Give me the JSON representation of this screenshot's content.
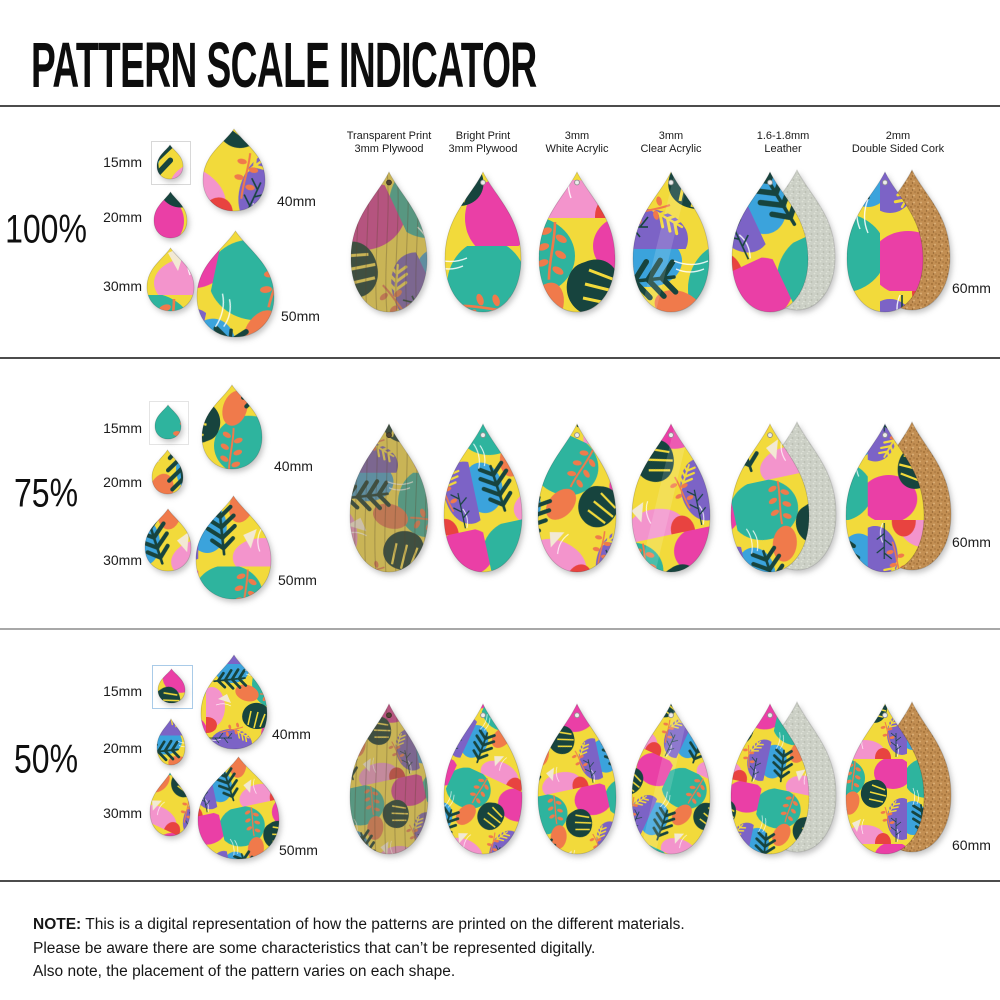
{
  "title": "PATTERN SCALE INDICATOR",
  "rows": [
    {
      "scale_label": "100%",
      "scale_percent": 100,
      "size_labels": [
        "15mm",
        "20mm",
        "30mm",
        "40mm",
        "50mm"
      ],
      "large_size_label": "60mm"
    },
    {
      "scale_label": "75%",
      "scale_percent": 75,
      "size_labels": [
        "15mm",
        "20mm",
        "30mm",
        "40mm",
        "50mm"
      ],
      "large_size_label": "60mm"
    },
    {
      "scale_label": "50%",
      "scale_percent": 50,
      "size_labels": [
        "15mm",
        "20mm",
        "30mm",
        "40mm",
        "50mm"
      ],
      "large_size_label": "60mm"
    }
  ],
  "materials": [
    {
      "line1": "Transparent Print",
      "line2": "3mm Plywood",
      "type": "transparent-plywood"
    },
    {
      "line1": "Bright Print",
      "line2": "3mm Plywood",
      "type": "bright-plywood"
    },
    {
      "line1": "3mm",
      "line2": "White Acrylic",
      "type": "white-acrylic"
    },
    {
      "line1": "3mm",
      "line2": "Clear Acrylic",
      "type": "clear-acrylic"
    },
    {
      "line1": "1.6-1.8mm",
      "line2": "Leather",
      "type": "leather"
    },
    {
      "line1": "2mm",
      "line2": "Double Sided Cork",
      "type": "cork"
    }
  ],
  "note": {
    "label": "NOTE:",
    "lines": [
      "This is a digital representation of how the patterns are printed on the different materials.",
      "Please be aware there are some characteristics that can’t be represented digitally.",
      "Also note, the placement of the pattern varies on each shape."
    ]
  },
  "palette": {
    "yellow": "#F2DA3B",
    "teal": "#2EB49E",
    "dark_green": "#17443E",
    "magenta": "#EA3FA6",
    "pink": "#F394CC",
    "purple": "#7C63C6",
    "blue": "#3BA3DC",
    "coral": "#F07A4B",
    "red": "#E84340",
    "cream": "#F2E9D4",
    "white": "#FFFFFF",
    "cork": "#C28E52",
    "suede": "#CCD0C6",
    "wood_tint": "#8A6B3F",
    "divider_dark": "#4C4C4C",
    "divider_light": "#A8A8A8"
  }
}
